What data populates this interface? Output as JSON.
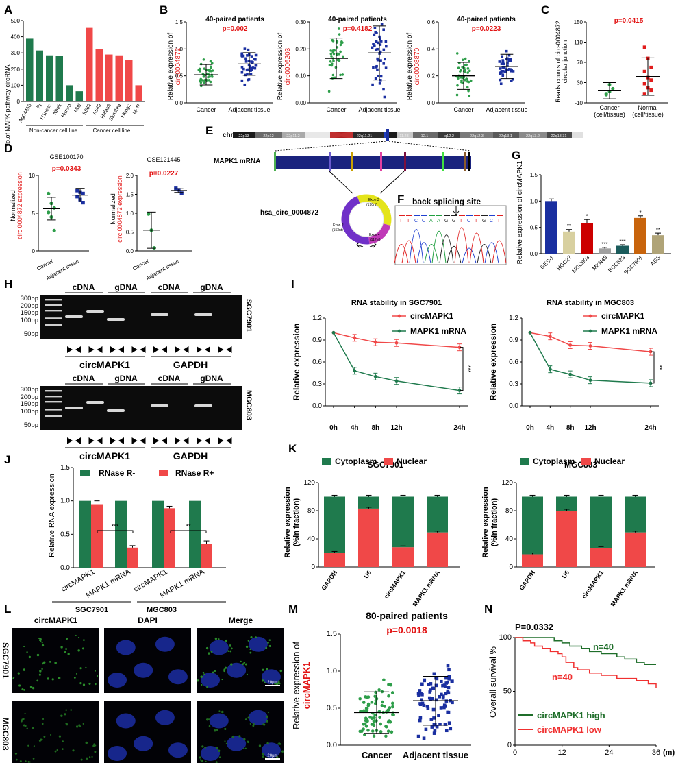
{
  "colors": {
    "green": "#1f7a4d",
    "red": "#f04848",
    "dkred": "#cc0000",
    "blue": "#1a2fa0",
    "grn2": "#2e9e4a",
    "brown": "#c8640c",
    "grey": "#a0a0a0",
    "teal": "#1b5c5c",
    "khaki": "#d8d0a0",
    "olive": "#b0a478"
  },
  "panels": {
    "A": {
      "letter": "A",
      "ylabel": "No.of MAPK pathway circRNA",
      "group_noncancer": "Non-cancer cell line",
      "group_cancer": "Cancer cell line"
    },
    "B": {
      "letter": "B",
      "subpanels": [
        {
          "title": "40-paired patients",
          "p": "p=0.002",
          "ylab_black": "Relative expression of",
          "ylab_red": "circ0004872",
          "x1": "Cancer",
          "x2": "Adjacent tissue"
        },
        {
          "title": "40-paired patients",
          "p": "p=0.4182",
          "ylab_black": "Relative expression of",
          "ylab_red": "circ0006203",
          "x1": "Cancer",
          "x2": "Adjacent tissue"
        },
        {
          "title": "40-paired patients",
          "p": "p=0.0223",
          "ylab_black": "Relative expression of",
          "ylab_red": "circ0008870",
          "x1": "Cancer",
          "x2": "Adjacent tissue"
        }
      ]
    },
    "C": {
      "letter": "C",
      "p": "p=0.0415",
      "ylabel1": "Reads counts of circ-0004872",
      "ylabel2": "circular junction",
      "x1a": "Cancer",
      "x1b": "(cell/tissue)",
      "x2a": "Normal",
      "x2b": "(cell/tissue)"
    },
    "D": {
      "letter": "D",
      "left": {
        "title": "GSE100170",
        "p": "p=0.0343"
      },
      "right": {
        "title": "GSE121445",
        "p": "p=0.0227"
      },
      "ylab1": "Normalized",
      "ylab2": "circ 0004872 expression",
      "x1": "Cancer",
      "x2": "Adjacent tissue"
    },
    "E": {
      "letter": "E",
      "chr": "chr22 (q11.22)",
      "bands": [
        "22p13",
        "22p12",
        "22p11.2",
        "22q11.21",
        "11.23",
        "12.1",
        "q12.2",
        "22q12.3",
        "22q13.1",
        "22q13.2",
        "22q13.31"
      ],
      "mrna": "MAPK1 mRNA",
      "circ": "hsa_circ_0004872",
      "exon3": "Exon 3",
      "exon3b": "(190nt)",
      "exon2": "Exon 2",
      "exon2b": "(153nt)",
      "exon4": "Exon 4",
      "exon4b": "(117nt)"
    },
    "F": {
      "letter": "F",
      "title": "back splicing site",
      "seq": [
        "T",
        "T",
        "C",
        "C",
        "A",
        "A",
        "G",
        "G",
        "T",
        "C",
        "T",
        "G",
        "C",
        "T"
      ]
    },
    "G": {
      "letter": "G",
      "ylabel": "Relative expression of circMAPK1"
    },
    "H": {
      "letter": "H",
      "ladder": [
        "300bp",
        "200bp",
        "150bp",
        "100bp",
        "50bp"
      ],
      "cdna": "cDNA",
      "gdna": "gDNA",
      "cell1": "SGC7901",
      "cell2": "MGC803",
      "gene1": "circMAPK1",
      "gene2": "GAPDH"
    },
    "I": {
      "letter": "I",
      "ylabel": "Relative expression",
      "leg1": "circMAPK1",
      "leg2": "MAPK1 mRNA"
    },
    "J": {
      "letter": "J",
      "ylabel": "Relative RNA expression",
      "leg1": "RNase R-",
      "leg2": "RNase R+",
      "cell1": "SGC7901",
      "cell2": "MGC803"
    },
    "K": {
      "letter": "K",
      "ylabel1": "Relative expression",
      "ylabel2": "(%in fraction)",
      "leg1": "Cytoplasm",
      "leg2": "Nuclear"
    },
    "L": {
      "letter": "L",
      "cols": [
        "circMAPK1",
        "DAPI",
        "Merge"
      ],
      "rows": [
        "SGC7901",
        "MGC803"
      ],
      "scale": "20μm"
    },
    "M": {
      "letter": "M",
      "title": "80-paired patients",
      "p": "p=0.0018",
      "ylab_black": "Relative expression of",
      "ylab_red": "circMAPK1",
      "x1": "Cancer",
      "x2": "Adjacent tissue"
    },
    "N": {
      "letter": "N",
      "p": "P=0.0332",
      "ylabel": "Overall survival %",
      "xunit": "(m)",
      "n_high": "n=40",
      "n_low": "n=40",
      "leg_high": "circMAPK1 high",
      "leg_low": "circMAPK1 low"
    }
  },
  "chart_data": [
    {
      "id": "A",
      "type": "bar",
      "categories": [
        "Ag04450",
        "Bj",
        "H1hesc",
        "Nhek",
        "Hsmm",
        "Nhlf",
        "K562",
        "A549",
        "Helas3",
        "Sknshra",
        "Hepg2",
        "Mcf7"
      ],
      "values": [
        388,
        315,
        285,
        283,
        100,
        63,
        455,
        322,
        290,
        285,
        258,
        100
      ],
      "colors": [
        "green",
        "green",
        "green",
        "green",
        "green",
        "green",
        "red",
        "red",
        "red",
        "red",
        "red",
        "red"
      ],
      "ylim": [
        0,
        500
      ],
      "yticks": [
        0,
        100,
        200,
        300,
        400,
        500
      ]
    },
    {
      "id": "B1",
      "type": "scatter",
      "categories": [
        "Cancer",
        "Adjacent tissue"
      ],
      "mean": [
        0.52,
        0.72
      ],
      "sd": [
        0.19,
        0.21
      ],
      "n": 40,
      "ylim": [
        0,
        1.5
      ],
      "yticks": [
        0.0,
        0.5,
        1.0,
        1.5
      ]
    },
    {
      "id": "B2",
      "type": "scatter",
      "categories": [
        "Cancer",
        "Adjacent tissue"
      ],
      "mean": [
        0.165,
        0.185
      ],
      "sd": [
        0.075,
        0.1
      ],
      "n": 40,
      "ylim": [
        0,
        0.3
      ],
      "yticks": [
        0.0,
        0.1,
        0.2,
        0.3
      ]
    },
    {
      "id": "B3",
      "type": "scatter",
      "categories": [
        "Cancer",
        "Adjacent tissue"
      ],
      "mean": [
        0.2,
        0.27
      ],
      "sd": [
        0.1,
        0.09
      ],
      "n": 40,
      "ylim": [
        0,
        0.6
      ],
      "yticks": [
        0.0,
        0.2,
        0.4,
        0.6
      ]
    },
    {
      "id": "C",
      "type": "scatter",
      "categories": [
        "Cancer (cell/tissue)",
        "Normal (cell/tissue)"
      ],
      "ylim": [
        -10,
        150
      ],
      "yticks": [
        -10,
        30,
        70,
        110,
        150
      ],
      "mean": [
        14,
        42
      ],
      "sd": [
        16,
        37
      ],
      "points": [
        [
          8,
          12,
          18,
          6,
          26
        ],
        [
          100,
          78,
          60,
          52,
          40,
          35,
          28,
          20,
          15,
          8
        ]
      ]
    },
    {
      "id": "D1",
      "type": "scatter",
      "categories": [
        "Cancer",
        "Adjacent tissue"
      ],
      "ylim": [
        0,
        10
      ],
      "yticks": [
        0,
        5,
        10
      ],
      "mean": [
        5.6,
        7.4
      ],
      "sd": [
        1.5,
        0.9
      ],
      "points": [
        [
          7.6,
          6.3,
          5.7,
          5.1,
          4.5,
          2.7
        ],
        [
          8.0,
          7.8,
          7.6,
          7.2,
          6.8,
          6.4
        ]
      ]
    },
    {
      "id": "D2",
      "type": "scatter",
      "categories": [
        "Cancer",
        "Adjacent tissue"
      ],
      "ylim": [
        0,
        2.0
      ],
      "yticks": [
        0.0,
        0.5,
        1.0,
        1.5,
        2.0
      ],
      "mean": [
        0.55,
        1.6
      ],
      "sd": [
        0.48,
        0.05
      ],
      "points": [
        [
          0.98,
          0.55,
          0.08
        ],
        [
          1.66,
          1.62,
          1.53
        ]
      ]
    },
    {
      "id": "G",
      "type": "bar",
      "categories": [
        "GES-1",
        "HGC27",
        "MGC803",
        "MKN45",
        "BGC823",
        "SGC7901",
        "AGS"
      ],
      "values": [
        1.0,
        0.42,
        0.58,
        0.1,
        0.15,
        0.68,
        0.35
      ],
      "errors": [
        0.04,
        0.04,
        0.07,
        0.02,
        0.02,
        0.04,
        0.04
      ],
      "stars": [
        "",
        "**",
        "*",
        "***",
        "***",
        "*",
        "**"
      ],
      "colors": [
        "blue",
        "khaki",
        "dkred",
        "grey",
        "teal",
        "brown",
        "olive"
      ],
      "ylim": [
        0,
        1.5
      ],
      "yticks": [
        0.0,
        0.5,
        1.0,
        1.5
      ]
    },
    {
      "id": "I1",
      "type": "line",
      "title": "RNA stability in SGC7901",
      "x": [
        "0h",
        "4h",
        "8h",
        "12h",
        "24h"
      ],
      "xpos": [
        0,
        4,
        8,
        12,
        24
      ],
      "series": [
        {
          "name": "circMAPK1",
          "values": [
            1.0,
            0.93,
            0.87,
            0.86,
            0.8
          ]
        },
        {
          "name": "MAPK1 mRNA",
          "values": [
            1.0,
            0.48,
            0.4,
            0.34,
            0.21
          ]
        }
      ],
      "ylim": [
        0,
        1.2
      ],
      "yticks": [
        0.0,
        0.3,
        0.6,
        0.9,
        1.2
      ],
      "sig": "***"
    },
    {
      "id": "I2",
      "type": "line",
      "title": "RNA stability in MGC803",
      "x": [
        "0h",
        "4h",
        "8h",
        "12h",
        "24h"
      ],
      "xpos": [
        0,
        4,
        8,
        12,
        24
      ],
      "series": [
        {
          "name": "circMAPK1",
          "values": [
            1.0,
            0.95,
            0.83,
            0.82,
            0.74
          ]
        },
        {
          "name": "MAPK1 mRNA",
          "values": [
            1.0,
            0.5,
            0.43,
            0.35,
            0.31
          ]
        }
      ],
      "ylim": [
        0,
        1.2
      ],
      "yticks": [
        0.0,
        0.3,
        0.6,
        0.9,
        1.2
      ],
      "sig": "**"
    },
    {
      "id": "J",
      "type": "bar",
      "categories": [
        "circMAPK1",
        "MAPK1 mRNA",
        "circMAPK1",
        "MAPK1 mRNA"
      ],
      "series": [
        {
          "name": "RNase R-",
          "values": [
            1.0,
            1.0,
            1.0,
            1.0
          ]
        },
        {
          "name": "RNase R+",
          "values": [
            0.95,
            0.3,
            0.89,
            0.35
          ],
          "errors": [
            0.05,
            0.03,
            0.03,
            0.05
          ]
        }
      ],
      "ylim": [
        0,
        1.5
      ],
      "yticks": [
        0.0,
        0.5,
        1.0,
        1.5
      ],
      "sig": [
        "***",
        "**"
      ]
    },
    {
      "id": "K1",
      "type": "bar",
      "title": "SGC7901",
      "categories": [
        "GAPDH",
        "U6",
        "circMAPK1",
        "MAPK1 mRNA"
      ],
      "series": [
        {
          "name": "Nuclear",
          "values": [
            20,
            83,
            28,
            49
          ]
        },
        {
          "name": "Cytoplasm",
          "values": [
            80,
            17,
            72,
            51
          ]
        }
      ],
      "ylim": [
        0,
        120
      ],
      "yticks": [
        0,
        40,
        80,
        120
      ]
    },
    {
      "id": "K2",
      "type": "bar",
      "title": "MGC803",
      "categories": [
        "GAPDH",
        "U6",
        "circMAPK1",
        "MAPK1 mRNA"
      ],
      "series": [
        {
          "name": "Nuclear",
          "values": [
            18,
            80,
            27,
            49
          ]
        },
        {
          "name": "Cytoplasm",
          "values": [
            82,
            20,
            73,
            51
          ]
        }
      ],
      "ylim": [
        0,
        120
      ],
      "yticks": [
        0,
        40,
        80,
        120
      ]
    },
    {
      "id": "M",
      "type": "scatter",
      "categories": [
        "Cancer",
        "Adjacent tissue"
      ],
      "mean": [
        0.44,
        0.6
      ],
      "sd": [
        0.28,
        0.33
      ],
      "n": 80,
      "ylim": [
        0,
        1.5
      ],
      "yticks": [
        0.0,
        0.5,
        1.0,
        1.5
      ]
    },
    {
      "id": "N",
      "type": "line",
      "x": [
        0,
        12,
        24,
        36
      ],
      "series": [
        {
          "name": "circMAPK1 high",
          "values": [
            [
              0,
              100
            ],
            [
              6,
              100
            ],
            [
              10,
              97
            ],
            [
              12,
              95
            ],
            [
              14,
              92
            ],
            [
              17,
              90
            ],
            [
              19,
              87
            ],
            [
              22,
              85
            ],
            [
              26,
              82
            ],
            [
              28,
              80
            ],
            [
              31,
              77
            ],
            [
              33,
              75
            ],
            [
              36,
              75
            ]
          ]
        },
        {
          "name": "circMAPK1 low",
          "values": [
            [
              0,
              100
            ],
            [
              2,
              97
            ],
            [
              4,
              95
            ],
            [
              5,
              92
            ],
            [
              7,
              90
            ],
            [
              9,
              87
            ],
            [
              11,
              85
            ],
            [
              12,
              82
            ],
            [
              13,
              77
            ],
            [
              15,
              72
            ],
            [
              16,
              70
            ],
            [
              19,
              67
            ],
            [
              22,
              65
            ],
            [
              26,
              62
            ],
            [
              31,
              60
            ],
            [
              34,
              57
            ],
            [
              36,
              53
            ]
          ]
        }
      ],
      "ylim": [
        0,
        100
      ],
      "yticks": [
        0,
        50,
        100
      ]
    }
  ]
}
